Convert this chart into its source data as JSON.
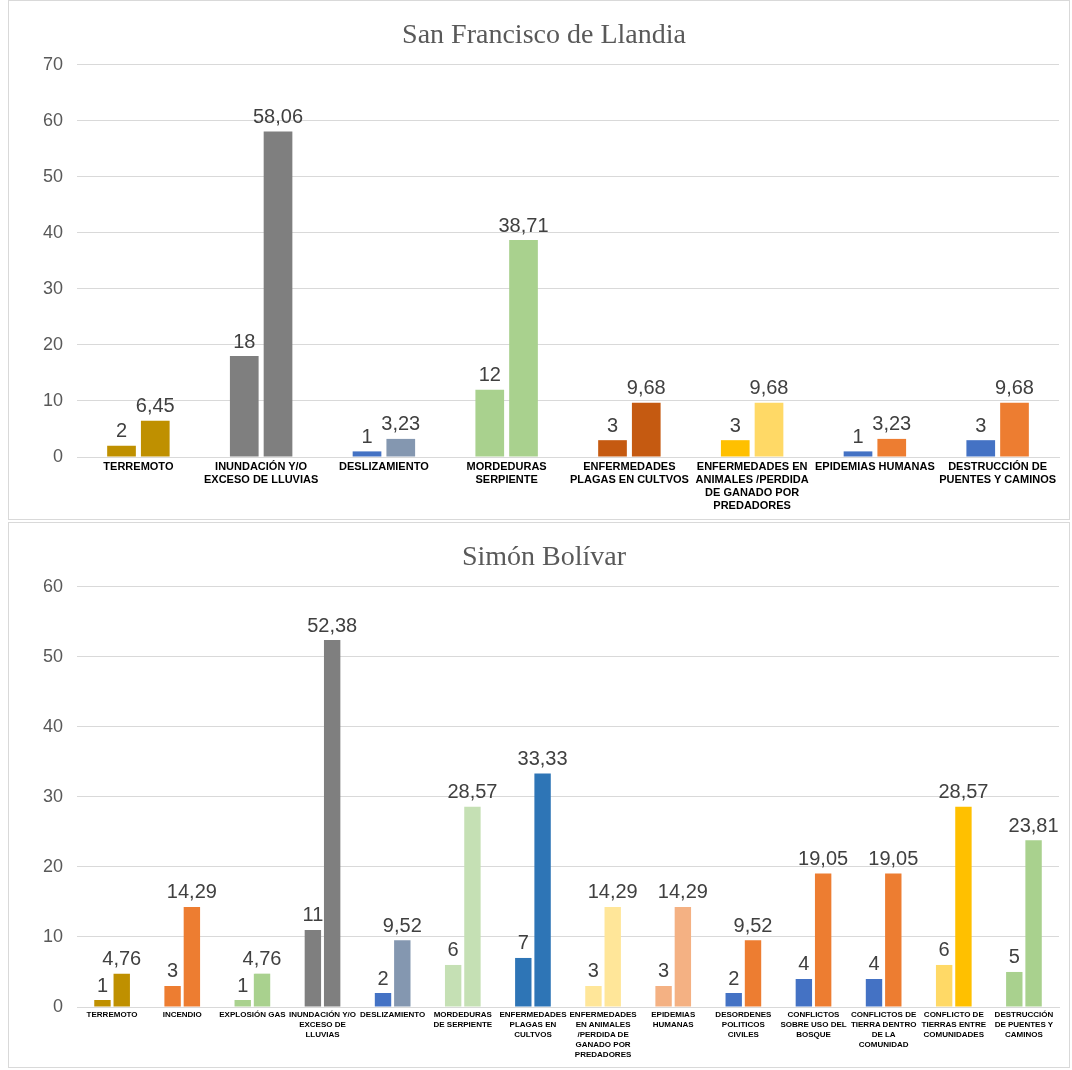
{
  "chart_data": [
    {
      "type": "bar",
      "title": "San Francisco de Llandia",
      "categories": [
        "TERREMOTO",
        "INUNDACIÓN Y/O EXCESO DE LLUVIAS",
        "DESLIZAMIENTO",
        "MORDEDURAS SERPIENTE",
        "ENFERMEDADES PLAGAS EN CULTVOS",
        "ENFERMEDADES EN ANIMALES /PERDIDA DE GANADO POR PREDADORES",
        "EPIDEMIAS HUMANAS",
        "DESTRUCCIÓN DE PUENTES Y CAMINOS"
      ],
      "series": [
        {
          "values": [
            2,
            18,
            1,
            12,
            3,
            3,
            1,
            3
          ],
          "value_labels": [
            "2",
            "18",
            "1",
            "12",
            "3",
            "3",
            "1",
            "3"
          ],
          "colors": [
            "#bf9000",
            "#7f7f7f",
            "#4472c4",
            "#a9d18e",
            "#c55a11",
            "#ffc000",
            "#4472c4",
            "#4472c4"
          ]
        },
        {
          "values": [
            6.45,
            58.06,
            3.23,
            38.71,
            9.68,
            9.68,
            3.23,
            9.68
          ],
          "value_labels": [
            "6,45",
            "58,06",
            "3,23",
            "38,71",
            "9,68",
            "9,68",
            "3,23",
            "9,68"
          ],
          "colors": [
            "#bf9000",
            "#7f7f7f",
            "#8497b0",
            "#a9d18e",
            "#c55a11",
            "#ffd966",
            "#ed7d31",
            "#ed7d31"
          ]
        }
      ],
      "ylim": [
        0,
        70
      ],
      "yticks": [
        0,
        10,
        20,
        30,
        40,
        50,
        60,
        70
      ],
      "grid": "y",
      "legend": false
    },
    {
      "type": "bar",
      "title": "Simón Bolívar",
      "categories": [
        "TERREMOTO",
        "INCENDIO",
        "EXPLOSIÓN GAS",
        "INUNDACIÓN Y/O EXCESO DE LLUVIAS",
        "DESLIZAMIENTO",
        "MORDEDURAS DE SERPIENTE",
        "ENFERMEDADES PLAGAS EN CULTVOS",
        "ENFERMEDADES EN ANIMALES /PERDIDA DE GANADO POR PREDADORES",
        "EPIDEMIAS HUMANAS",
        "DESORDENES POLITICOS CIVILES",
        "CONFLICTOS SOBRE USO DEL BOSQUE",
        "CONFLICTOS DE TIERRA DENTRO DE LA COMUNIDAD",
        "CONFLICTO DE TIERRAS ENTRE COMUNIDADES",
        "DESTRUCCIÓN DE PUENTES Y CAMINOS"
      ],
      "series": [
        {
          "values": [
            1,
            3,
            1,
            11,
            2,
            6,
            7,
            3,
            3,
            2,
            4,
            4,
            6,
            5
          ],
          "value_labels": [
            "1",
            "3",
            "1",
            "11",
            "2",
            "6",
            "7",
            "3",
            "3",
            "2",
            "4",
            "4",
            "6",
            "5"
          ],
          "colors": [
            "#bf9000",
            "#ed7d31",
            "#a9d18e",
            "#7f7f7f",
            "#4472c4",
            "#c5e0b4",
            "#2e75b6",
            "#ffe699",
            "#f4b183",
            "#4472c4",
            "#4472c4",
            "#4472c4",
            "#ffd966",
            "#a9d18e"
          ]
        },
        {
          "values": [
            4.76,
            14.29,
            4.76,
            52.38,
            9.52,
            28.57,
            33.33,
            14.29,
            14.29,
            9.52,
            19.05,
            19.05,
            28.57,
            23.81
          ],
          "value_labels": [
            "4,76",
            "14,29",
            "4,76",
            "52,38",
            "9,52",
            "28,57",
            "33,33",
            "14,29",
            "14,29",
            "9,52",
            "19,05",
            "19,05",
            "28,57",
            "23,81"
          ],
          "colors": [
            "#bf9000",
            "#ed7d31",
            "#a9d18e",
            "#7f7f7f",
            "#8497b0",
            "#c5e0b4",
            "#2e75b6",
            "#ffe699",
            "#f4b183",
            "#ed7d31",
            "#ed7d31",
            "#ed7d31",
            "#ffc000",
            "#a9d18e"
          ]
        }
      ],
      "ylim": [
        0,
        60
      ],
      "yticks": [
        0,
        10,
        20,
        30,
        40,
        50,
        60
      ],
      "grid": "y",
      "legend": false
    }
  ]
}
